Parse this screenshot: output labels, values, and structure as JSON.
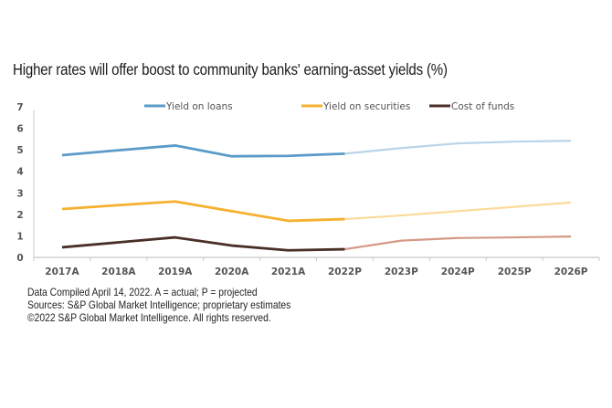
{
  "chart_data": {
    "type": "line",
    "title": "Higher rates will offer boost to community banks' earning-asset yields (%)",
    "xlabel": "",
    "ylabel": "",
    "categories": [
      "2017A",
      "2018A",
      "2019A",
      "2020A",
      "2021A",
      "2022P",
      "2023P",
      "2024P",
      "2025P",
      "2026P"
    ],
    "ylim": [
      0,
      7
    ],
    "yticks": [
      "0",
      "1",
      "2",
      "3",
      "4",
      "5",
      "6",
      "7"
    ],
    "grid": false,
    "legend_position": "top-center",
    "projected_start_index": 5,
    "series": [
      {
        "name": "Yield on loans",
        "color": "#5b9bc8",
        "projected_color": "#b9d4e8",
        "values": [
          4.75,
          4.98,
          5.2,
          4.7,
          4.72,
          4.82,
          5.08,
          5.3,
          5.38,
          5.42
        ]
      },
      {
        "name": "Yield on securities",
        "color": "#f5b02e",
        "projected_color": "#fbdb9a",
        "values": [
          2.25,
          2.43,
          2.6,
          2.15,
          1.7,
          1.78,
          1.95,
          2.15,
          2.35,
          2.55
        ]
      },
      {
        "name": "Cost of funds",
        "color": "#4a2f27",
        "projected_color": "#d49a86",
        "values": [
          0.47,
          0.7,
          0.93,
          0.55,
          0.33,
          0.38,
          0.78,
          0.9,
          0.93,
          0.97
        ]
      }
    ]
  },
  "footnotes": {
    "line1": "Data Compiled April 14, 2022. A = actual; P = projected",
    "line2": "Sources: S&P Global Market Intelligence; proprietary estimates",
    "line3": "©2022 S&P Global Market Intelligence. All rights reserved."
  }
}
